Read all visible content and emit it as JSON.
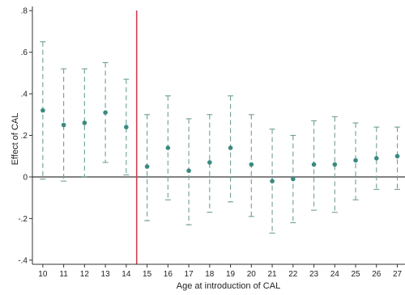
{
  "chart_data": {
    "type": "scatter",
    "xlabel": "Age at introduction of CAL",
    "ylabel": "Effect of CAL",
    "x_range": [
      9.5,
      27.1
    ],
    "ylim": [
      -0.42,
      0.82
    ],
    "yticks": [
      -0.4,
      -0.2,
      0,
      0.2,
      0.4,
      0.6,
      0.8
    ],
    "ytick_labels": [
      "-.4",
      "-.2",
      "0",
      ".2",
      ".4",
      ".6",
      ".8"
    ],
    "xticks": [
      10,
      11,
      12,
      13,
      14,
      15,
      16,
      17,
      18,
      19,
      20,
      21,
      22,
      23,
      24,
      25,
      26,
      27
    ],
    "xtick_labels": [
      "10",
      "11",
      "12",
      "13",
      "14",
      "15",
      "16",
      "17",
      "18",
      "19",
      "20",
      "21",
      "22",
      "23",
      "24",
      "25",
      "26",
      "27"
    ],
    "reference_hline": 0,
    "reference_vline": 14.5,
    "grid": false,
    "legend": "none",
    "colors": {
      "point": "#3a8a80",
      "ci": "#6f9f98",
      "vline": "#d04050",
      "hline": "#666666",
      "axis": "#333333"
    },
    "points": [
      {
        "x": 10,
        "y": 0.32,
        "lo": -0.01,
        "hi": 0.65
      },
      {
        "x": 11,
        "y": 0.25,
        "lo": -0.02,
        "hi": 0.52
      },
      {
        "x": 12,
        "y": 0.26,
        "lo": 0.0,
        "hi": 0.52
      },
      {
        "x": 13,
        "y": 0.31,
        "lo": 0.07,
        "hi": 0.55
      },
      {
        "x": 14,
        "y": 0.24,
        "lo": 0.01,
        "hi": 0.47
      },
      {
        "x": 15,
        "y": 0.05,
        "lo": -0.21,
        "hi": 0.3
      },
      {
        "x": 16,
        "y": 0.14,
        "lo": -0.11,
        "hi": 0.39
      },
      {
        "x": 17,
        "y": 0.03,
        "lo": -0.23,
        "hi": 0.28
      },
      {
        "x": 18,
        "y": 0.07,
        "lo": -0.17,
        "hi": 0.3
      },
      {
        "x": 19,
        "y": 0.14,
        "lo": -0.12,
        "hi": 0.39
      },
      {
        "x": 20,
        "y": 0.06,
        "lo": -0.19,
        "hi": 0.3
      },
      {
        "x": 21,
        "y": -0.02,
        "lo": -0.27,
        "hi": 0.23
      },
      {
        "x": 22,
        "y": -0.01,
        "lo": -0.22,
        "hi": 0.2
      },
      {
        "x": 23,
        "y": 0.06,
        "lo": -0.16,
        "hi": 0.27
      },
      {
        "x": 24,
        "y": 0.06,
        "lo": -0.17,
        "hi": 0.29
      },
      {
        "x": 25,
        "y": 0.08,
        "lo": -0.11,
        "hi": 0.26
      },
      {
        "x": 26,
        "y": 0.09,
        "lo": -0.06,
        "hi": 0.24
      },
      {
        "x": 27,
        "y": 0.1,
        "lo": -0.06,
        "hi": 0.24
      }
    ]
  }
}
